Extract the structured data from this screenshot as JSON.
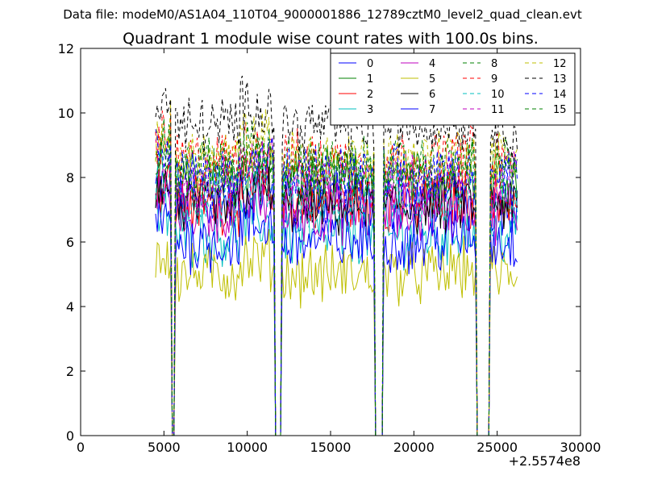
{
  "figure": {
    "suptitle": "Data file: modeM0/AS1A04_110T04_9000001886_12789cztM0_level2_quad_clean.evt"
  },
  "chart_data": {
    "type": "line",
    "title": "Quadrant 1 module wise count rates with 100.0s bins.",
    "xlabel": "",
    "ylabel": "",
    "xlim": [
      0,
      30000
    ],
    "ylim": [
      0,
      12
    ],
    "x_offset_label": "+2.5574e8",
    "xticks": [
      0,
      5000,
      10000,
      15000,
      20000,
      25000,
      30000
    ],
    "xtick_labels": [
      "0",
      "5000",
      "10000",
      "15000",
      "20000",
      "25000",
      "30000"
    ],
    "yticks": [
      0,
      2,
      4,
      6,
      8,
      10,
      12
    ],
    "ytick_labels": [
      "0",
      "2",
      "4",
      "6",
      "8",
      "10",
      "12"
    ],
    "grid": false,
    "legend": {
      "placement": "top-right",
      "columns": 4
    },
    "x_range": [
      4500,
      26200
    ],
    "bin_seconds": 100,
    "gaps": [
      [
        5450,
        5650
      ],
      [
        11650,
        12100
      ],
      [
        17650,
        18150
      ],
      [
        23750,
        24600
      ]
    ],
    "series": [
      {
        "name": "0",
        "color": "#0000ff",
        "style": "solid",
        "mean": 7.2
      },
      {
        "name": "1",
        "color": "#008000",
        "style": "solid",
        "mean": 7.9
      },
      {
        "name": "2",
        "color": "#ff0000",
        "style": "solid",
        "mean": 7.2
      },
      {
        "name": "3",
        "color": "#00bfbf",
        "style": "solid",
        "mean": 6.2
      },
      {
        "name": "4",
        "color": "#bf00bf",
        "style": "solid",
        "mean": 6.9
      },
      {
        "name": "5",
        "color": "#bfbf00",
        "style": "solid",
        "mean": 5.0
      },
      {
        "name": "6",
        "color": "#000000",
        "style": "solid",
        "mean": 7.1
      },
      {
        "name": "7",
        "color": "#0000ff",
        "style": "solid",
        "mean": 6.0
      },
      {
        "name": "8",
        "color": "#008000",
        "style": "dashed",
        "mean": 8.3
      },
      {
        "name": "9",
        "color": "#ff0000",
        "style": "dashed",
        "mean": 8.5
      },
      {
        "name": "10",
        "color": "#00bfbf",
        "style": "dashed",
        "mean": 7.4
      },
      {
        "name": "11",
        "color": "#bf00bf",
        "style": "dashed",
        "mean": 7.8
      },
      {
        "name": "12",
        "color": "#bfbf00",
        "style": "dashed",
        "mean": 8.6
      },
      {
        "name": "13",
        "color": "#000000",
        "style": "dashed",
        "mean": 9.6
      },
      {
        "name": "14",
        "color": "#0000ff",
        "style": "dashed",
        "mean": 8.0
      },
      {
        "name": "15",
        "color": "#008000",
        "style": "dashed",
        "mean": 8.2
      }
    ]
  }
}
